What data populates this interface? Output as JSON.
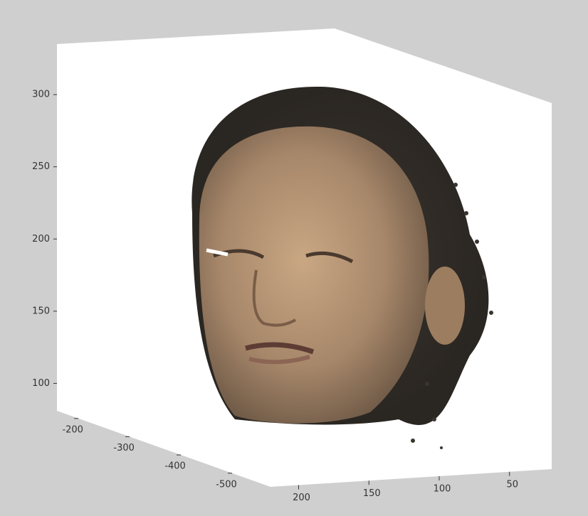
{
  "chart_data": {
    "type": "scatter3d",
    "xlim": [
      -158,
      -575
    ],
    "xticks": [
      -200,
      -300,
      -400,
      -500
    ],
    "ylim": [
      220,
      20
    ],
    "yticks": [
      200,
      150,
      100,
      50
    ],
    "zlim": [
      81,
      335
    ],
    "zticks": [
      100,
      150,
      200,
      250,
      300
    ]
  }
}
